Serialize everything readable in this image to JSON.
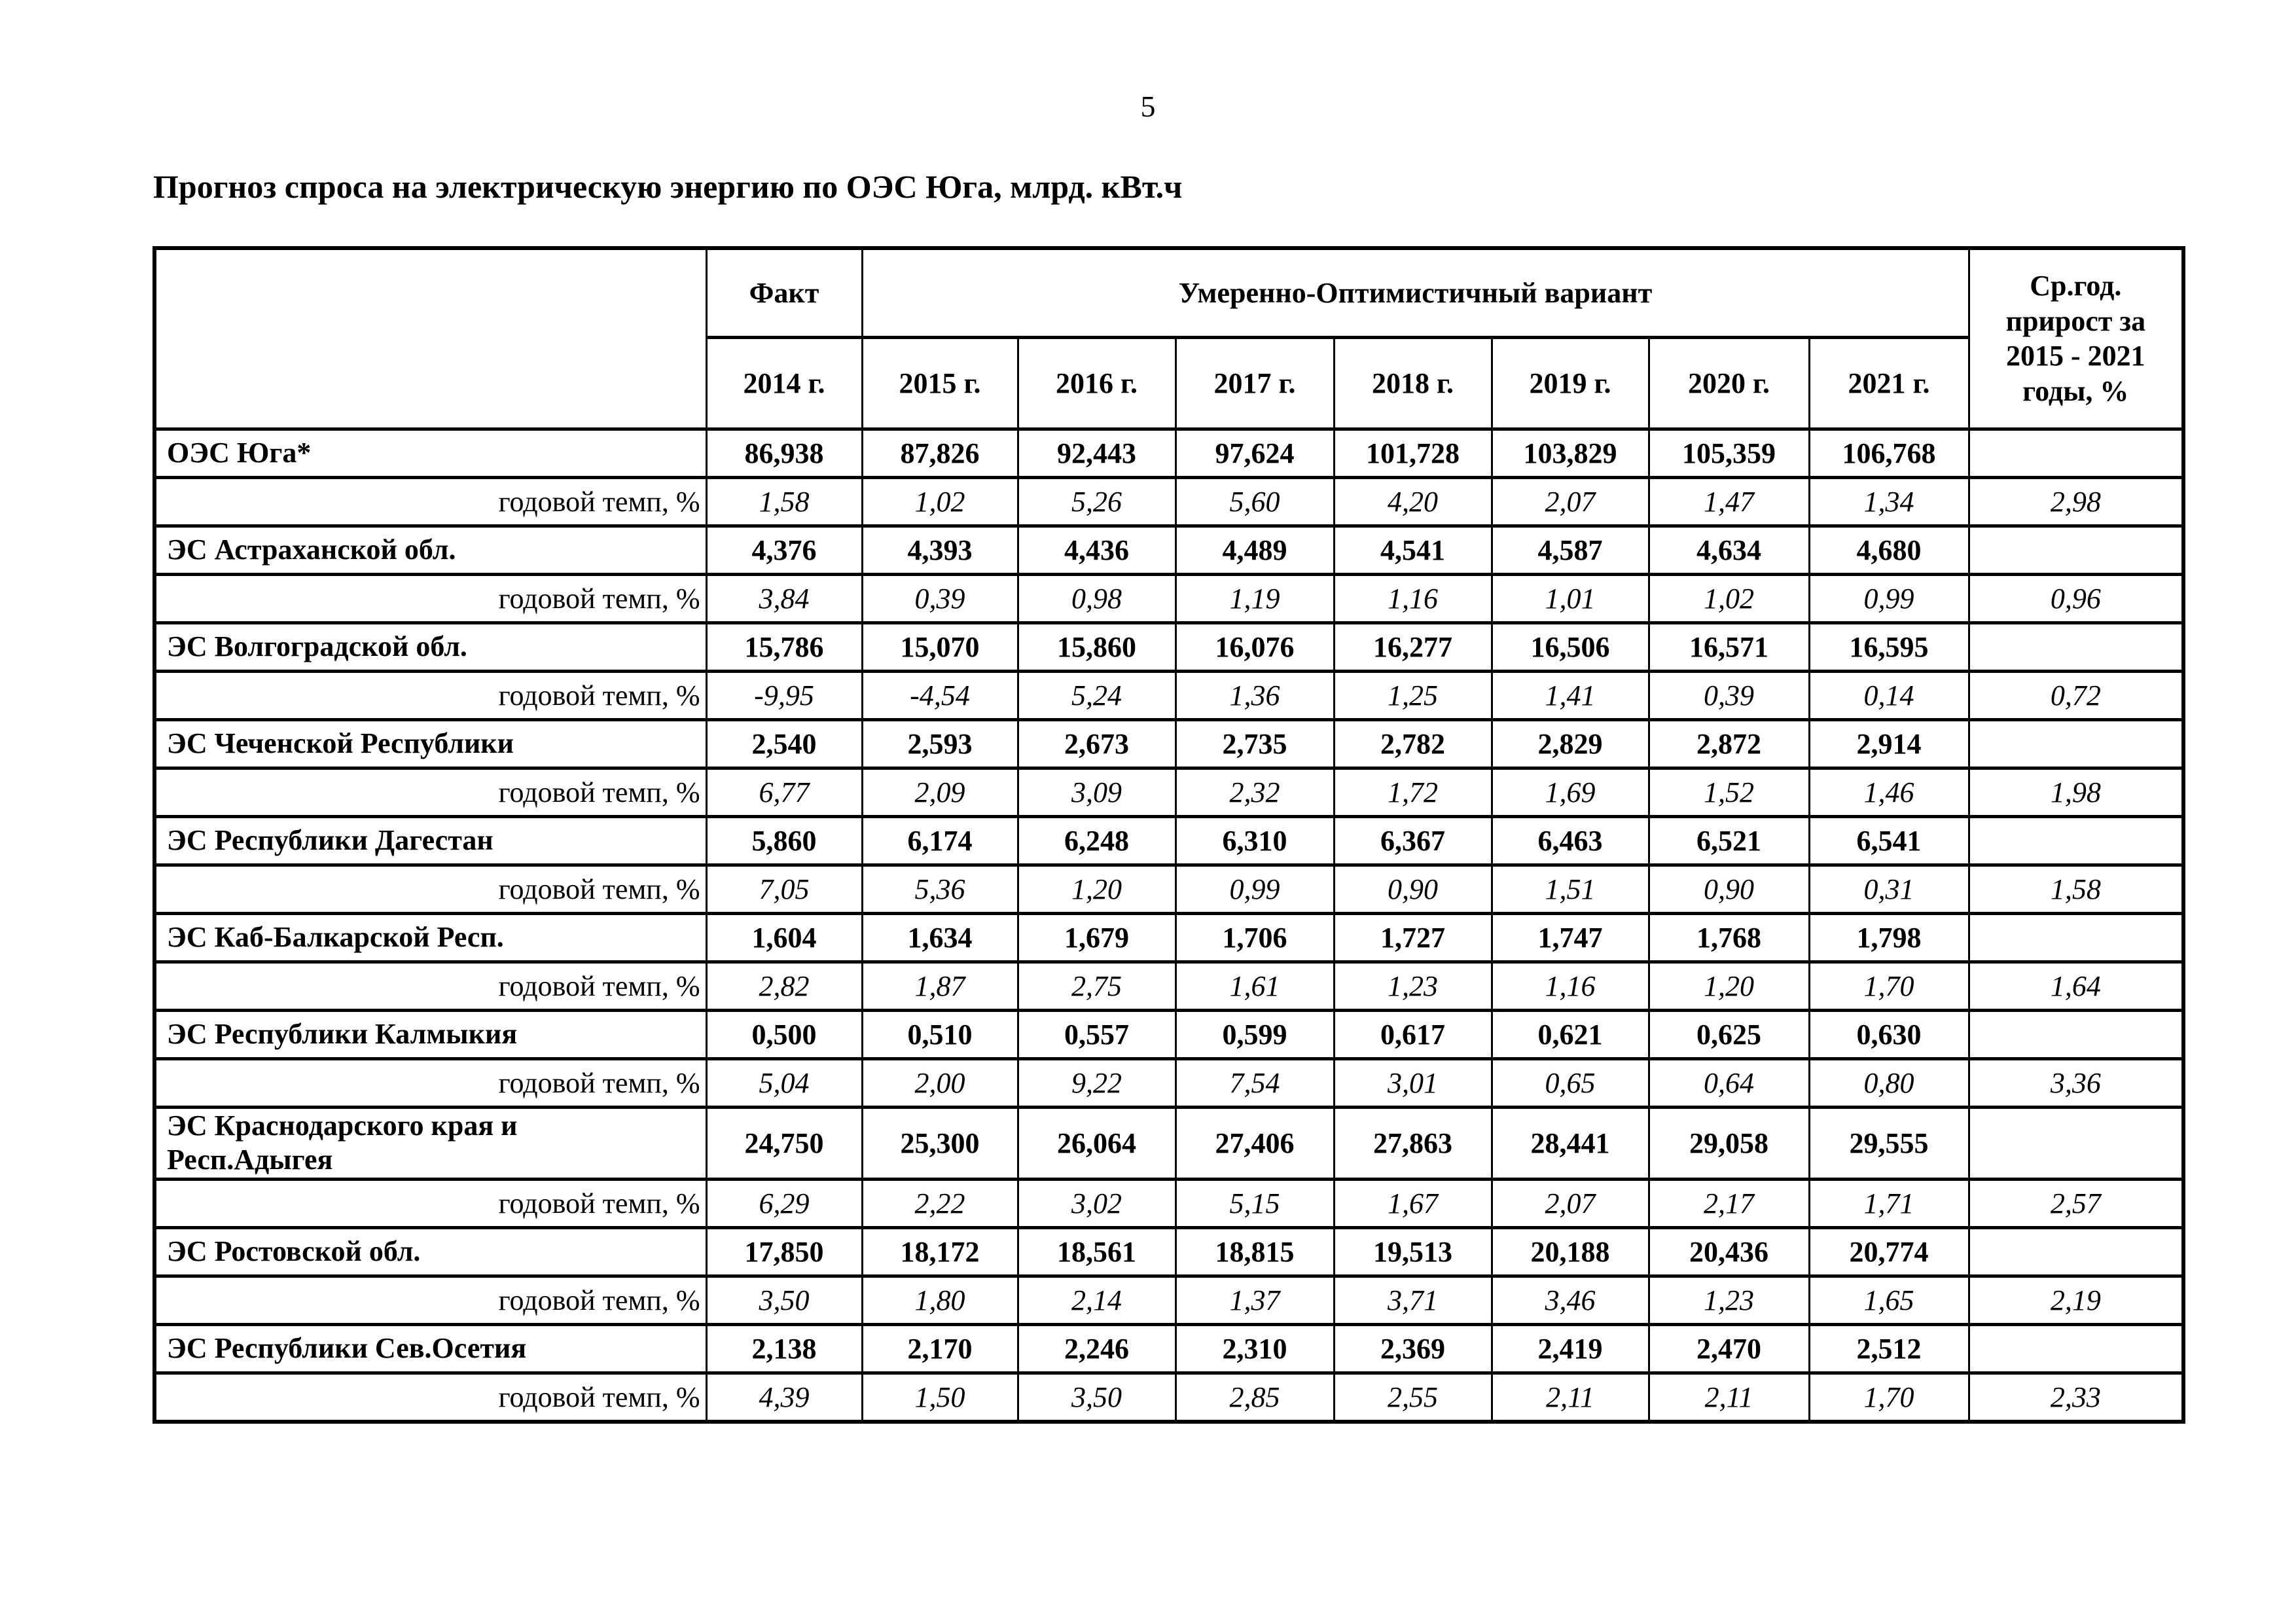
{
  "page": {
    "number": "5",
    "title": "Прогноз спроса на электрическую энергию по ОЭС Юга, млрд. кВт.ч"
  },
  "table": {
    "header": {
      "fact": "Факт",
      "scenario": "Умеренно-Оптимистичный вариант",
      "avg_growth": "Ср.год. прирост за 2015 - 2021 годы, %",
      "years": [
        "2014 г.",
        "2015 г.",
        "2016 г.",
        "2017 г.",
        "2018 г.",
        "2019 г.",
        "2020 г.",
        "2021 г."
      ]
    },
    "growth_label": "годовой темп, %",
    "rows": [
      {
        "name": "ОЭС Юга*",
        "values": [
          "86,938",
          "87,826",
          "92,443",
          "97,624",
          "101,728",
          "103,829",
          "105,359",
          "106,768"
        ],
        "growth": [
          "1,58",
          "1,02",
          "5,26",
          "5,60",
          "4,20",
          "2,07",
          "1,47",
          "1,34"
        ],
        "growth_avg": "2,98"
      },
      {
        "name": "ЭС Астраханской обл.",
        "values": [
          "4,376",
          "4,393",
          "4,436",
          "4,489",
          "4,541",
          "4,587",
          "4,634",
          "4,680"
        ],
        "growth": [
          "3,84",
          "0,39",
          "0,98",
          "1,19",
          "1,16",
          "1,01",
          "1,02",
          "0,99"
        ],
        "growth_avg": "0,96"
      },
      {
        "name": "ЭС Волгоградской обл.",
        "values": [
          "15,786",
          "15,070",
          "15,860",
          "16,076",
          "16,277",
          "16,506",
          "16,571",
          "16,595"
        ],
        "growth": [
          "-9,95",
          "-4,54",
          "5,24",
          "1,36",
          "1,25",
          "1,41",
          "0,39",
          "0,14"
        ],
        "growth_avg": "0,72"
      },
      {
        "name": "ЭС Чеченской Республики",
        "values": [
          "2,540",
          "2,593",
          "2,673",
          "2,735",
          "2,782",
          "2,829",
          "2,872",
          "2,914"
        ],
        "growth": [
          "6,77",
          "2,09",
          "3,09",
          "2,32",
          "1,72",
          "1,69",
          "1,52",
          "1,46"
        ],
        "growth_avg": "1,98"
      },
      {
        "name": "ЭС Республики Дагестан",
        "values": [
          "5,860",
          "6,174",
          "6,248",
          "6,310",
          "6,367",
          "6,463",
          "6,521",
          "6,541"
        ],
        "growth": [
          "7,05",
          "5,36",
          "1,20",
          "0,99",
          "0,90",
          "1,51",
          "0,90",
          "0,31"
        ],
        "growth_avg": "1,58"
      },
      {
        "name": "ЭС Каб-Балкарской Респ.",
        "values": [
          "1,604",
          "1,634",
          "1,679",
          "1,706",
          "1,727",
          "1,747",
          "1,768",
          "1,798"
        ],
        "growth": [
          "2,82",
          "1,87",
          "2,75",
          "1,61",
          "1,23",
          "1,16",
          "1,20",
          "1,70"
        ],
        "growth_avg": "1,64"
      },
      {
        "name": "ЭС Республики Калмыкия",
        "values": [
          "0,500",
          "0,510",
          "0,557",
          "0,599",
          "0,617",
          "0,621",
          "0,625",
          "0,630"
        ],
        "growth": [
          "5,04",
          "2,00",
          "9,22",
          "7,54",
          "3,01",
          "0,65",
          "0,64",
          "0,80"
        ],
        "growth_avg": "3,36"
      },
      {
        "name": "ЭС Краснодарского края и Респ.Адыгея",
        "values": [
          "24,750",
          "25,300",
          "26,064",
          "27,406",
          "27,863",
          "28,441",
          "29,058",
          "29,555"
        ],
        "growth": [
          "6,29",
          "2,22",
          "3,02",
          "5,15",
          "1,67",
          "2,07",
          "2,17",
          "1,71"
        ],
        "growth_avg": "2,57"
      },
      {
        "name": "ЭС Ростовской обл.",
        "values": [
          "17,850",
          "18,172",
          "18,561",
          "18,815",
          "19,513",
          "20,188",
          "20,436",
          "20,774"
        ],
        "growth": [
          "3,50",
          "1,80",
          "2,14",
          "1,37",
          "3,71",
          "3,46",
          "1,23",
          "1,65"
        ],
        "growth_avg": "2,19"
      },
      {
        "name": "ЭС Республики Сев.Осетия",
        "values": [
          "2,138",
          "2,170",
          "2,246",
          "2,310",
          "2,369",
          "2,419",
          "2,470",
          "2,512"
        ],
        "growth": [
          "4,39",
          "1,50",
          "3,50",
          "2,85",
          "2,55",
          "2,11",
          "2,11",
          "1,70"
        ],
        "growth_avg": "2,33"
      }
    ]
  }
}
